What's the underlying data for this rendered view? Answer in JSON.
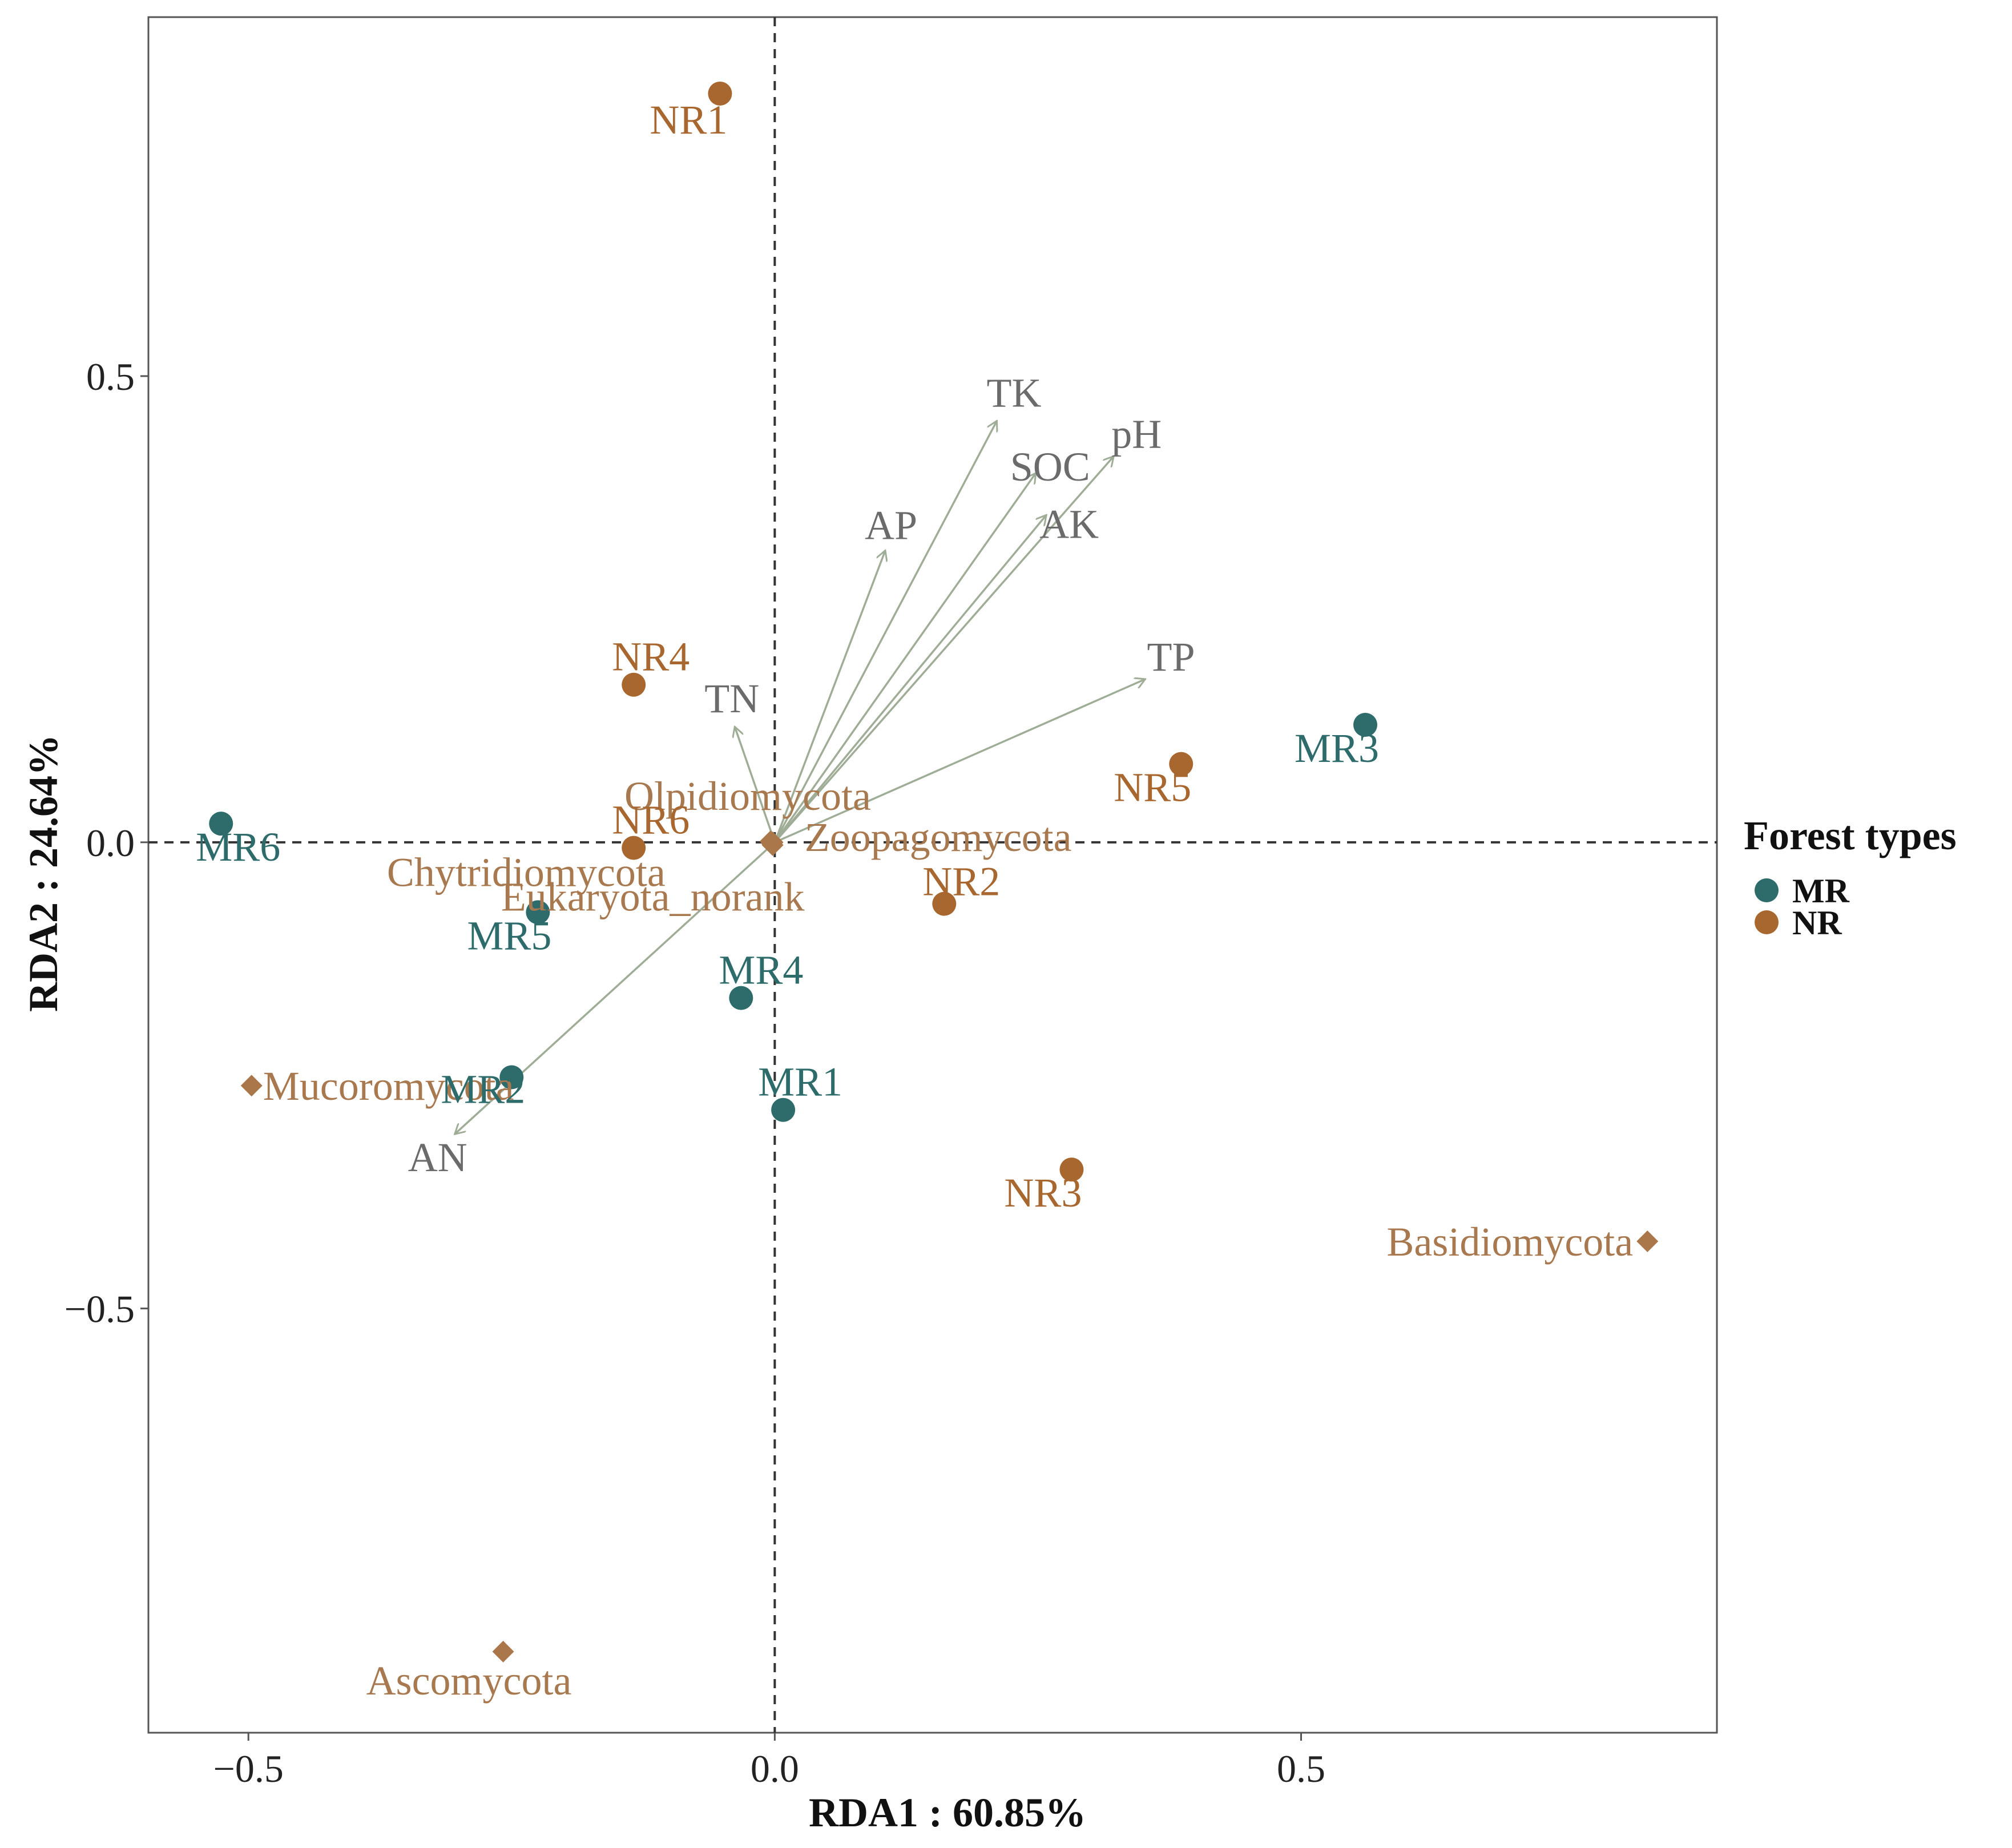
{
  "chart_data": {
    "type": "scatter",
    "subtype": "RDA biplot",
    "xlabel": "RDA1 : 60.85%",
    "ylabel": "RDA2 : 24.64%",
    "xlim": [
      -0.595,
      0.895
    ],
    "ylim": [
      -0.955,
      0.885
    ],
    "xticks": [
      -0.5,
      0.0,
      0.5
    ],
    "xtick_labels": [
      "−0.5",
      "0.0",
      "0.5"
    ],
    "yticks": [
      -0.5,
      0.0,
      0.5
    ],
    "ytick_labels": [
      "−0.5",
      "0.0",
      "0.5"
    ],
    "reference_lines": {
      "x": 0.0,
      "y": 0.0,
      "style": "dashed"
    },
    "legend": {
      "title": "Forest types",
      "position": "right",
      "entries": [
        {
          "label": "MR",
          "color": "#2e6b6b"
        },
        {
          "label": "NR",
          "color": "#a8672f"
        }
      ]
    },
    "colors": {
      "MR": "#2e6b6b",
      "NR": "#a8672f",
      "species": "#a9774a",
      "species_text": "#a8784f",
      "arrow": "#9fad97",
      "env_text": "#6b6b6b",
      "axis_frame": "#555555",
      "dashed_line": "#333333"
    },
    "sites": [
      {
        "label": "MR1",
        "group": "MR",
        "x": 0.008,
        "y": -0.287
      },
      {
        "label": "MR2",
        "group": "MR",
        "x": -0.25,
        "y": -0.252
      },
      {
        "label": "MR3",
        "group": "MR",
        "x": 0.561,
        "y": 0.126
      },
      {
        "label": "MR4",
        "group": "MR",
        "x": -0.032,
        "y": -0.167
      },
      {
        "label": "MR5",
        "group": "MR",
        "x": -0.225,
        "y": -0.075
      },
      {
        "label": "MR6",
        "group": "MR",
        "x": -0.526,
        "y": 0.02
      },
      {
        "label": "NR1",
        "group": "NR",
        "x": -0.052,
        "y": 0.803
      },
      {
        "label": "NR2",
        "group": "NR",
        "x": 0.161,
        "y": -0.066
      },
      {
        "label": "NR3",
        "group": "NR",
        "x": 0.282,
        "y": -0.351
      },
      {
        "label": "NR4",
        "group": "NR",
        "x": -0.134,
        "y": 0.169
      },
      {
        "label": "NR5",
        "group": "NR",
        "x": 0.386,
        "y": 0.084
      },
      {
        "label": "NR6",
        "group": "NR",
        "x": -0.134,
        "y": -0.006
      }
    ],
    "species": [
      {
        "label": "Olpidiomycota",
        "x": -0.004,
        "y": 0.001
      },
      {
        "label": "Zoopagomycota",
        "x": -0.002,
        "y": 0.0
      },
      {
        "label": "Chytridiomycota",
        "x": -0.003,
        "y": -0.001
      },
      {
        "label": "Eukaryota_norank",
        "x": -0.002,
        "y": -0.003
      },
      {
        "label": "Mucoromycota",
        "x": -0.497,
        "y": -0.261
      },
      {
        "label": "Basidiomycota",
        "x": 0.829,
        "y": -0.428
      },
      {
        "label": "Ascomycota",
        "x": -0.258,
        "y": -0.868
      }
    ],
    "env_vectors": [
      {
        "label": "TK",
        "x": 0.211,
        "y": 0.452
      },
      {
        "label": "SOC",
        "x": 0.248,
        "y": 0.396
      },
      {
        "label": "pH",
        "x": 0.322,
        "y": 0.414
      },
      {
        "label": "AK",
        "x": 0.258,
        "y": 0.351
      },
      {
        "label": "AP",
        "x": 0.105,
        "y": 0.313
      },
      {
        "label": "TP",
        "x": 0.352,
        "y": 0.175
      },
      {
        "label": "TN",
        "x": -0.038,
        "y": 0.124
      },
      {
        "label": "AN",
        "x": -0.304,
        "y": -0.313
      }
    ]
  }
}
